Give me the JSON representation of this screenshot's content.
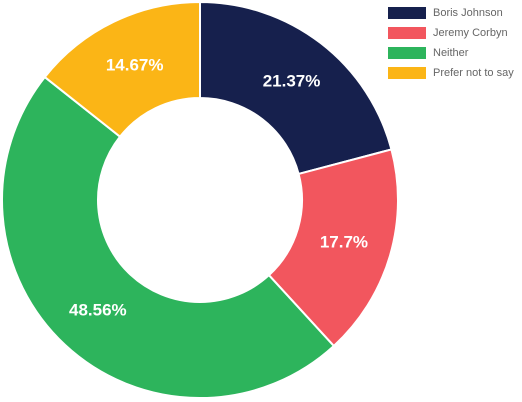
{
  "chart_data": {
    "type": "pie",
    "variant": "doughnut",
    "categories": [
      "Boris Johnson",
      "Jeremy Corbyn",
      "Neither",
      "Prefer not to say"
    ],
    "values": [
      21.37,
      17.7,
      48.56,
      14.67
    ],
    "value_labels": [
      "21.37%",
      "17.7%",
      "48.56%",
      "14.67%"
    ],
    "colors": [
      "#16204d",
      "#f2565e",
      "#2db45c",
      "#fbb516"
    ],
    "legend_position": "top-right",
    "title": ""
  }
}
